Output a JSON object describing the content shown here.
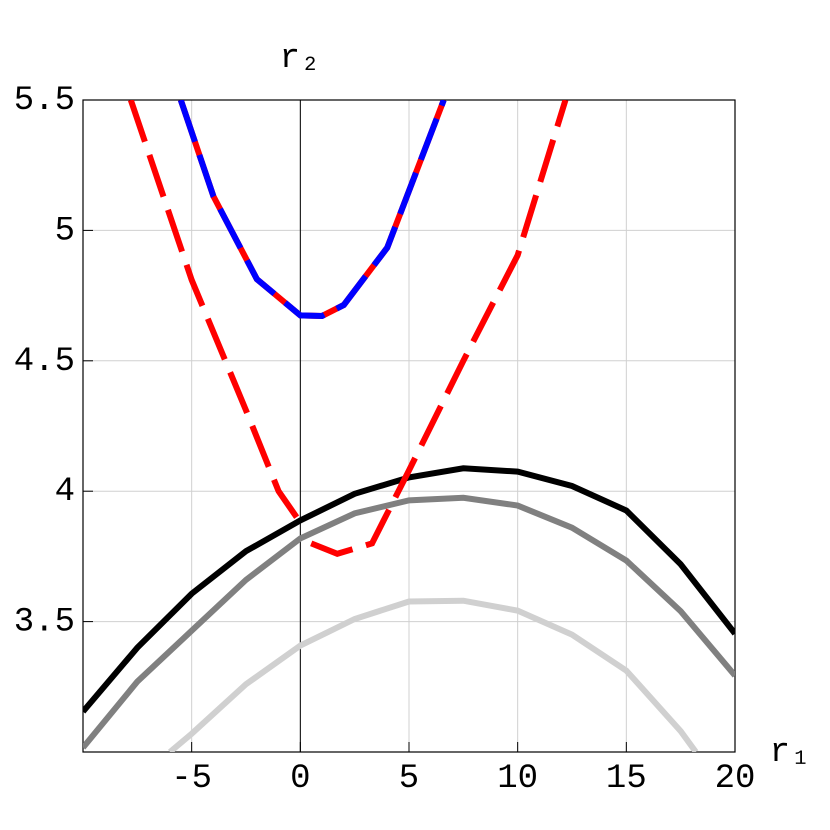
{
  "chart_data": {
    "type": "line",
    "title": "r₂",
    "x_label": "r₁",
    "xlim": [
      -10,
      20
    ],
    "ylim": [
      3,
      5.5
    ],
    "xticks": [
      -5,
      0,
      5,
      10,
      15,
      20
    ],
    "yticks": [
      3.5,
      4,
      4.5,
      5,
      5.5
    ],
    "grid": true,
    "series": [
      {
        "color": "#d0d0d0",
        "style": "solid",
        "x": [
          -6,
          -5,
          -2.5,
          0,
          2.5,
          5,
          7.5,
          10,
          12.5,
          15,
          17.5,
          18.2
        ],
        "values": [
          3.0,
          3.07,
          3.26,
          3.408,
          3.51,
          3.577,
          3.58,
          3.542,
          3.45,
          3.312,
          3.08,
          3.0
        ]
      },
      {
        "color": "#808080",
        "style": "solid",
        "x": [
          -10,
          -7.5,
          -5,
          -2.5,
          0,
          2.5,
          5,
          7.5,
          10,
          12.5,
          15,
          17.5,
          20
        ],
        "values": [
          3.017,
          3.27,
          3.465,
          3.66,
          3.819,
          3.915,
          3.965,
          3.975,
          3.945,
          3.86,
          3.734,
          3.54,
          3.293
        ]
      },
      {
        "color": "#000000",
        "style": "solid",
        "x": [
          -10,
          -7.5,
          -5,
          -2.5,
          0,
          2.5,
          5,
          7.5,
          10,
          12.5,
          15,
          17.5,
          20
        ],
        "values": [
          3.155,
          3.4,
          3.607,
          3.77,
          3.888,
          3.99,
          4.053,
          4.088,
          4.075,
          4.02,
          3.926,
          3.72,
          3.454
        ]
      },
      {
        "color": "#ff0000",
        "style": "dashed",
        "x": [
          -7.8,
          -5,
          -2.5,
          -1,
          0,
          0.25,
          0.5,
          1.7,
          3.3,
          5,
          7.5,
          10,
          12.2
        ],
        "values": [
          5.5,
          4.81,
          4.31,
          4.0,
          3.88,
          null,
          3.8,
          3.76,
          3.8,
          4.08,
          4.5,
          4.905,
          5.5
        ]
      },
      {
        "color": "#ff0000",
        "style": "solid",
        "x": [
          -5.5,
          -4,
          -2,
          0,
          1,
          2,
          4,
          6.6
        ],
        "values": [
          5.5,
          5.131,
          4.813,
          4.674,
          4.672,
          4.714,
          4.934,
          5.5
        ]
      },
      {
        "color": "#0000ff",
        "style": "dashed",
        "x": [
          -5.5,
          -4,
          -2,
          0,
          1,
          2,
          4,
          6.6
        ],
        "values": [
          5.5,
          5.131,
          4.813,
          4.674,
          4.672,
          4.714,
          4.934,
          5.5
        ]
      }
    ]
  }
}
